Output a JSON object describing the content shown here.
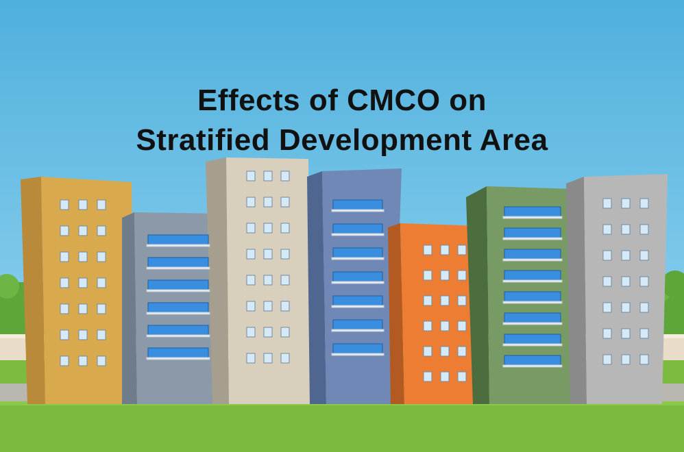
{
  "title": {
    "line1": "Effects of CMCO on",
    "line2": "Stratified Development Area"
  },
  "colors": {
    "sky_top": "#5bb8e0",
    "sky_bottom": "#9fd8ef",
    "grass": "#7cba3f",
    "building_yellow": "#d9a94e",
    "building_gray_blue": "#8b99a8",
    "building_cream": "#d8cfbd",
    "building_blue": "#6f88b5",
    "building_orange": "#ec7d33",
    "building_green": "#789a64",
    "building_silver": "#b7b7b7"
  }
}
